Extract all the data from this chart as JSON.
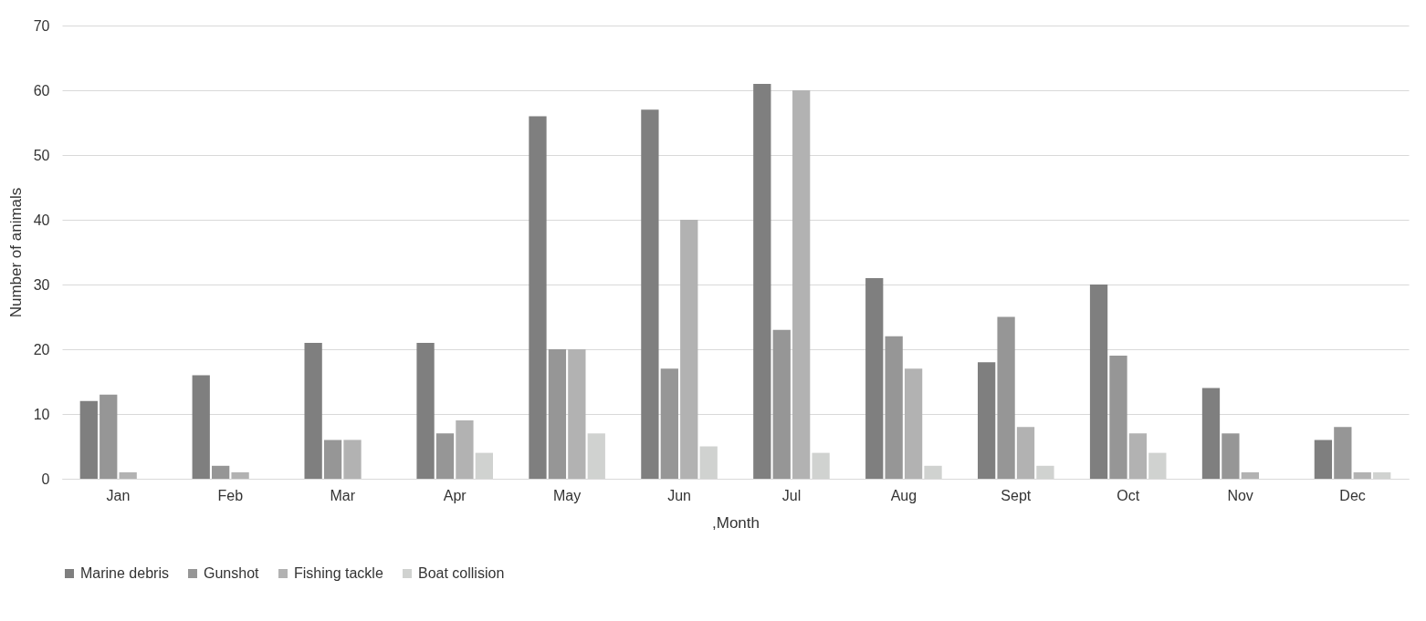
{
  "chart_data": {
    "type": "bar",
    "xlabel": ",Month",
    "ylabel": "Number of animals",
    "categories": [
      "Jan",
      "Feb",
      "Mar",
      "Apr",
      "May",
      "Jun",
      "Jul",
      "Aug",
      "Sept",
      "Oct",
      "Nov",
      "Dec"
    ],
    "series": [
      {
        "name": "Marine debris",
        "color": "#7f7f7f",
        "values": [
          12,
          16,
          21,
          21,
          56,
          57,
          61,
          31,
          18,
          30,
          14,
          6
        ]
      },
      {
        "name": "Gunshot",
        "color": "#969696",
        "values": [
          13,
          2,
          6,
          7,
          20,
          17,
          23,
          22,
          25,
          19,
          7,
          8
        ]
      },
      {
        "name": "Fishing tackle",
        "color": "#b2b2b2",
        "values": [
          1,
          1,
          6,
          9,
          20,
          40,
          60,
          17,
          8,
          7,
          1,
          1
        ]
      },
      {
        "name": "Boat collision",
        "color": "#d0d2d0",
        "values": [
          0,
          0,
          0,
          4,
          7,
          5,
          4,
          2,
          2,
          4,
          0,
          1
        ]
      }
    ],
    "ylim": [
      0,
      70
    ],
    "yticks": [
      0,
      10,
      20,
      30,
      40,
      50,
      60,
      70
    ],
    "grid": "y",
    "legend": "bottom"
  }
}
